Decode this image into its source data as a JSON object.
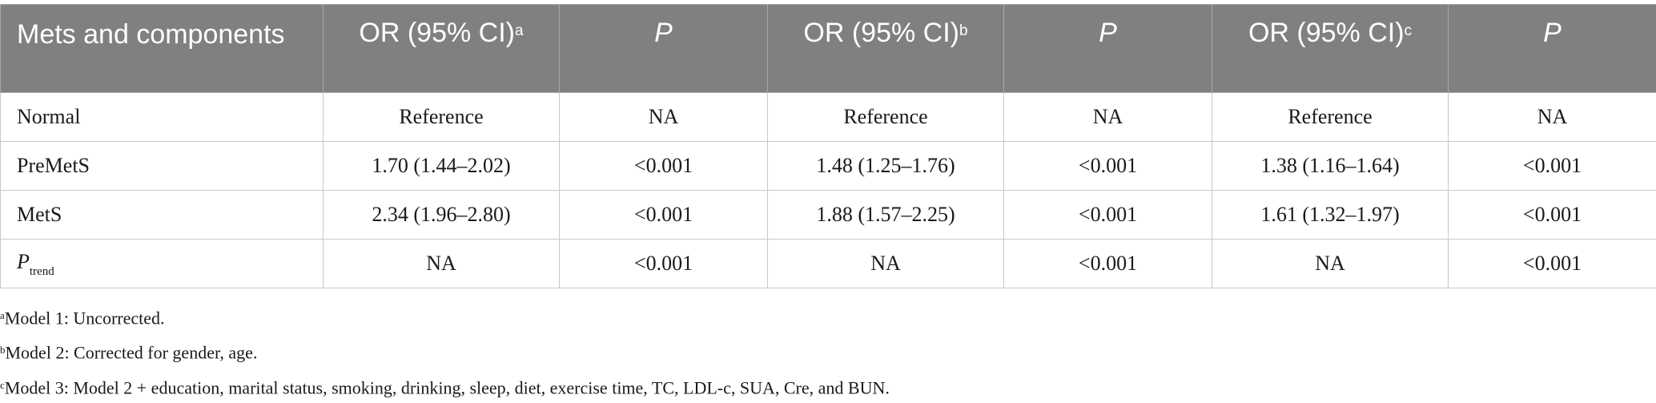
{
  "table": {
    "header": {
      "col1": "Mets and components",
      "or_label": "OR (95% CI)",
      "p_label": "P",
      "sup_a": "a",
      "sup_b": "b",
      "sup_c": "c"
    },
    "rows": [
      {
        "label": "Normal",
        "or1": "Reference",
        "p1": "NA",
        "or2": "Reference",
        "p2": "NA",
        "or3": "Reference",
        "p3": "NA"
      },
      {
        "label": "PreMetS",
        "or1": "1.70 (1.44–2.02)",
        "p1": "<0.001",
        "or2": "1.48 (1.25–1.76)",
        "p2": "<0.001",
        "or3": "1.38 (1.16–1.64)",
        "p3": "<0.001"
      },
      {
        "label": "MetS",
        "or1": "2.34 (1.96–2.80)",
        "p1": "<0.001",
        "or2": "1.88 (1.57–2.25)",
        "p2": "<0.001",
        "or3": "1.61 (1.32–1.97)",
        "p3": "<0.001"
      },
      {
        "label_p": "P",
        "label_sub": "trend",
        "or1": "NA",
        "p1": "<0.001",
        "or2": "NA",
        "p2": "<0.001",
        "or3": "NA",
        "p3": "<0.001"
      }
    ]
  },
  "footnotes": [
    {
      "mark": "a",
      "text": "Model 1: Uncorrected."
    },
    {
      "mark": "b",
      "text": "Model 2: Corrected for gender, age."
    },
    {
      "mark": "c",
      "text": "Model 3: Model 2 + education, marital status, smoking, drinking, sleep, diet, exercise time, TC, LDL-c, SUA, Cre, and BUN."
    }
  ]
}
